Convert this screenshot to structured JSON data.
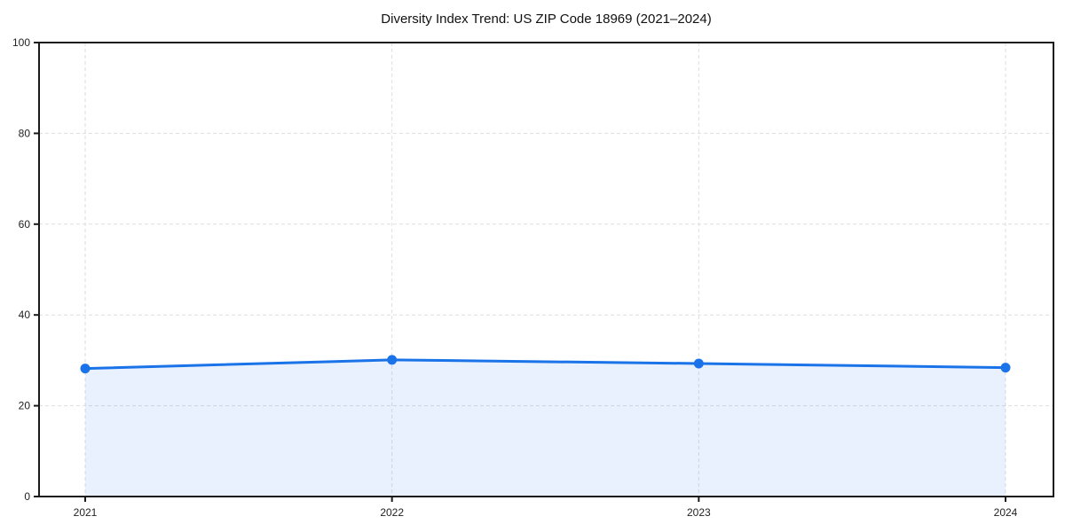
{
  "chart_data": {
    "type": "line",
    "title": "Diversity Index Trend: US ZIP Code 18969 (2021–2024)",
    "x": [
      "2021",
      "2022",
      "2023",
      "2024"
    ],
    "series": [
      {
        "name": "Diversity Index",
        "values": [
          28.2,
          30.1,
          29.3,
          28.4
        ]
      }
    ],
    "xlabel": "",
    "ylabel": "",
    "ylim": [
      0,
      100
    ],
    "yticks": [
      0,
      20,
      40,
      60,
      80,
      100
    ],
    "grid": true,
    "grid_style": "dashed",
    "legend": "none",
    "marker": "circle",
    "area_fill": true,
    "colors": {
      "line": "#1a73e8",
      "marker": "#1a73e8",
      "area": "rgba(26,115,232,0.10)",
      "grid": "#dedede",
      "axis": "#1a1a1a",
      "text": "#222222",
      "background": "#ffffff"
    }
  }
}
